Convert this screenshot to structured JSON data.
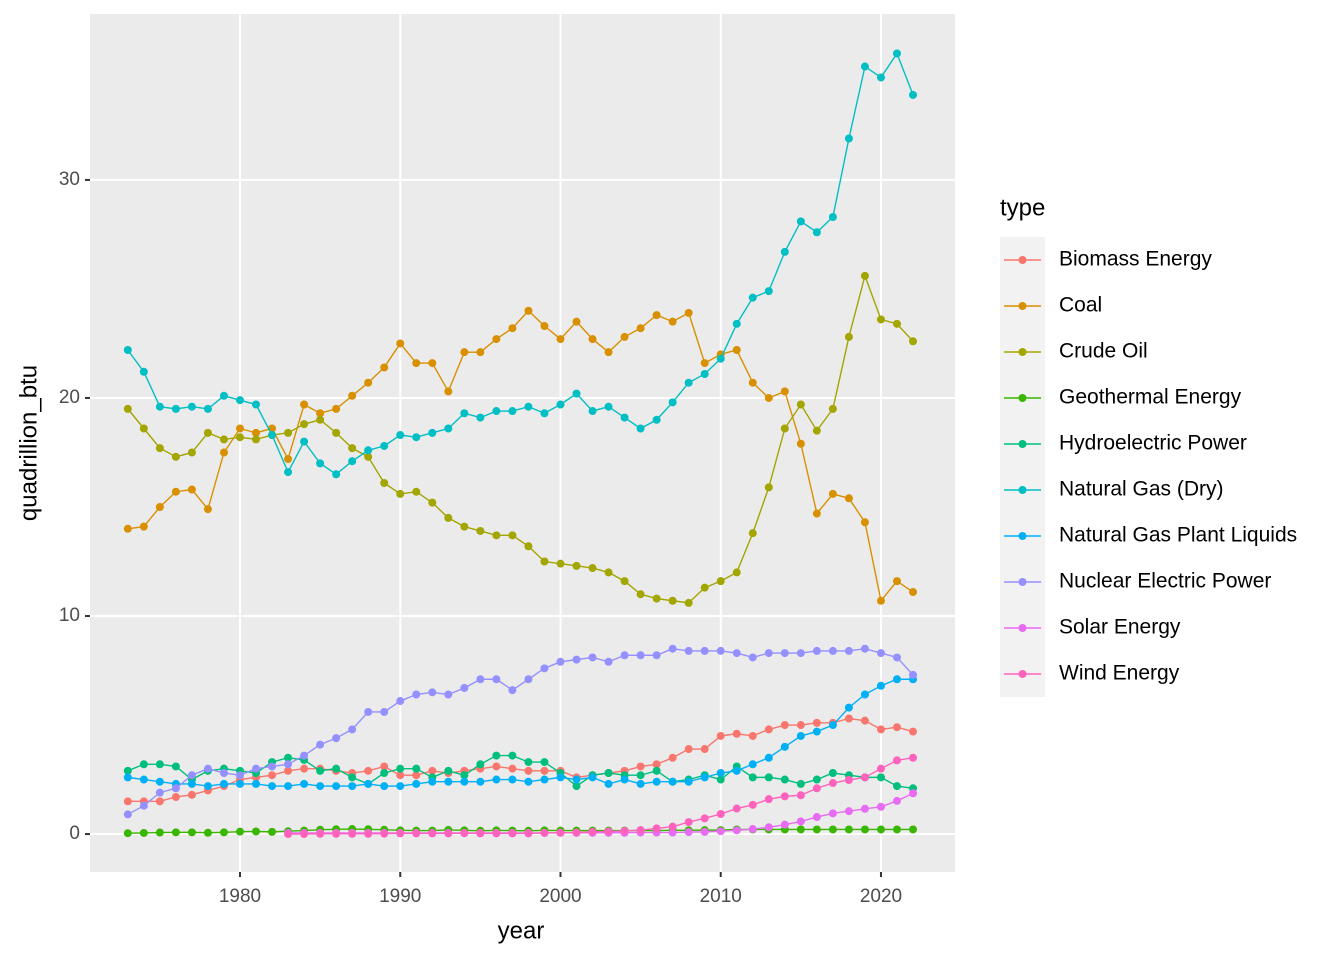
{
  "chart_data": {
    "type": "line",
    "x_label": "year",
    "y_label": "quadrillion_btu",
    "legend_title": "type",
    "legend_position": "right",
    "grid": true,
    "xlim": [
      1970.64,
      2024.62
    ],
    "ylim": [
      -1.74,
      37.61
    ],
    "xticks": [
      1980,
      1990,
      2000,
      2010,
      2020
    ],
    "yticks": [
      0,
      10,
      20,
      30
    ],
    "x": [
      1973,
      1974,
      1975,
      1976,
      1977,
      1978,
      1979,
      1980,
      1981,
      1982,
      1983,
      1984,
      1985,
      1986,
      1987,
      1988,
      1989,
      1990,
      1991,
      1992,
      1993,
      1994,
      1995,
      1996,
      1997,
      1998,
      1999,
      2000,
      2001,
      2002,
      2003,
      2004,
      2005,
      2006,
      2007,
      2008,
      2009,
      2010,
      2011,
      2012,
      2013,
      2014,
      2015,
      2016,
      2017,
      2018,
      2019,
      2020,
      2021,
      2022
    ],
    "series": [
      {
        "name": "Biomass Energy",
        "color": "#F8766D",
        "values": [
          1.5,
          1.5,
          1.5,
          1.7,
          1.8,
          2.0,
          2.2,
          2.5,
          2.6,
          2.7,
          2.9,
          3.0,
          3.0,
          2.9,
          2.8,
          2.9,
          3.1,
          2.7,
          2.7,
          2.9,
          2.8,
          2.9,
          3.0,
          3.1,
          3.0,
          2.9,
          2.9,
          2.9,
          2.6,
          2.7,
          2.8,
          2.9,
          3.1,
          3.2,
          3.5,
          3.9,
          3.9,
          4.5,
          4.6,
          4.5,
          4.8,
          5.0,
          5.0,
          5.1,
          5.1,
          5.3,
          5.2,
          4.8,
          4.9,
          4.7
        ]
      },
      {
        "name": "Coal",
        "color": "#D89000",
        "values": [
          14.0,
          14.1,
          15.0,
          15.7,
          15.8,
          14.9,
          17.5,
          18.6,
          18.4,
          18.6,
          17.2,
          19.7,
          19.3,
          19.5,
          20.1,
          20.7,
          21.4,
          22.5,
          21.6,
          21.6,
          20.3,
          22.1,
          22.1,
          22.7,
          23.2,
          24.0,
          23.3,
          22.7,
          23.5,
          22.7,
          22.1,
          22.8,
          23.2,
          23.8,
          23.5,
          23.9,
          21.6,
          22.0,
          22.2,
          20.7,
          20.0,
          20.3,
          17.9,
          14.7,
          15.6,
          15.4,
          14.3,
          10.7,
          11.6,
          11.1
        ]
      },
      {
        "name": "Crude Oil",
        "color": "#A3A500",
        "values": [
          19.5,
          18.6,
          17.7,
          17.3,
          17.5,
          18.4,
          18.1,
          18.2,
          18.1,
          18.3,
          18.4,
          18.8,
          19.0,
          18.4,
          17.7,
          17.3,
          16.1,
          15.6,
          15.7,
          15.2,
          14.5,
          14.1,
          13.9,
          13.7,
          13.7,
          13.2,
          12.5,
          12.4,
          12.3,
          12.2,
          12.0,
          11.6,
          11.0,
          10.8,
          10.7,
          10.6,
          11.3,
          11.6,
          12.0,
          13.8,
          15.9,
          18.6,
          19.7,
          18.5,
          19.5,
          22.8,
          25.6,
          23.6,
          23.4,
          22.6
        ]
      },
      {
        "name": "Geothermal Energy",
        "color": "#39B600",
        "values": [
          0.04,
          0.05,
          0.07,
          0.08,
          0.08,
          0.06,
          0.08,
          0.11,
          0.12,
          0.1,
          0.13,
          0.16,
          0.2,
          0.22,
          0.23,
          0.22,
          0.2,
          0.17,
          0.16,
          0.16,
          0.19,
          0.17,
          0.15,
          0.17,
          0.16,
          0.15,
          0.17,
          0.16,
          0.16,
          0.16,
          0.16,
          0.16,
          0.16,
          0.16,
          0.17,
          0.17,
          0.18,
          0.18,
          0.21,
          0.21,
          0.21,
          0.21,
          0.21,
          0.21,
          0.21,
          0.21,
          0.21,
          0.21,
          0.21,
          0.21
        ]
      },
      {
        "name": "Hydroelectric Power",
        "color": "#00BF7D",
        "values": [
          2.9,
          3.2,
          3.2,
          3.1,
          2.5,
          2.9,
          3.0,
          2.9,
          2.8,
          3.3,
          3.5,
          3.4,
          2.9,
          3.0,
          2.6,
          2.3,
          2.8,
          3.0,
          3.0,
          2.6,
          2.9,
          2.7,
          3.2,
          3.6,
          3.6,
          3.3,
          3.3,
          2.8,
          2.2,
          2.7,
          2.8,
          2.7,
          2.7,
          2.9,
          2.4,
          2.5,
          2.7,
          2.5,
          3.1,
          2.6,
          2.6,
          2.5,
          2.3,
          2.5,
          2.8,
          2.7,
          2.6,
          2.6,
          2.2,
          2.1
        ]
      },
      {
        "name": "Natural Gas (Dry)",
        "color": "#00BFC4",
        "values": [
          22.2,
          21.2,
          19.6,
          19.5,
          19.6,
          19.5,
          20.1,
          19.9,
          19.7,
          18.3,
          16.6,
          18.0,
          17.0,
          16.5,
          17.1,
          17.6,
          17.8,
          18.3,
          18.2,
          18.4,
          18.6,
          19.3,
          19.1,
          19.4,
          19.4,
          19.6,
          19.3,
          19.7,
          20.2,
          19.4,
          19.6,
          19.1,
          18.6,
          19.0,
          19.8,
          20.7,
          21.1,
          21.8,
          23.4,
          24.6,
          24.9,
          26.7,
          28.1,
          27.6,
          28.3,
          31.9,
          35.2,
          34.7,
          35.8,
          33.9
        ]
      },
      {
        "name": "Natural Gas Plant Liquids",
        "color": "#00B0F6",
        "values": [
          2.6,
          2.5,
          2.4,
          2.3,
          2.3,
          2.2,
          2.3,
          2.3,
          2.3,
          2.2,
          2.2,
          2.3,
          2.2,
          2.2,
          2.2,
          2.3,
          2.2,
          2.2,
          2.3,
          2.4,
          2.4,
          2.4,
          2.4,
          2.5,
          2.5,
          2.4,
          2.5,
          2.6,
          2.5,
          2.6,
          2.3,
          2.5,
          2.3,
          2.4,
          2.4,
          2.4,
          2.6,
          2.8,
          2.9,
          3.2,
          3.5,
          4.0,
          4.5,
          4.7,
          5.0,
          5.8,
          6.4,
          6.8,
          7.1,
          7.1
        ]
      },
      {
        "name": "Nuclear Electric Power",
        "color": "#9590FF",
        "values": [
          0.9,
          1.3,
          1.9,
          2.1,
          2.7,
          3.0,
          2.8,
          2.7,
          3.0,
          3.1,
          3.2,
          3.6,
          4.1,
          4.4,
          4.8,
          5.6,
          5.6,
          6.1,
          6.4,
          6.5,
          6.4,
          6.7,
          7.1,
          7.1,
          6.6,
          7.1,
          7.6,
          7.9,
          8.0,
          8.1,
          7.9,
          8.2,
          8.2,
          8.2,
          8.5,
          8.4,
          8.4,
          8.4,
          8.3,
          8.1,
          8.3,
          8.3,
          8.3,
          8.4,
          8.4,
          8.4,
          8.5,
          8.3,
          8.1,
          7.3
        ]
      },
      {
        "name": "Solar Energy",
        "color": "#E76BF3",
        "values": [
          null,
          null,
          null,
          null,
          null,
          null,
          null,
          null,
          null,
          null,
          0.05,
          0.05,
          0.05,
          0.05,
          0.05,
          0.05,
          0.05,
          0.05,
          0.05,
          0.05,
          0.05,
          0.05,
          0.05,
          0.05,
          0.05,
          0.05,
          0.05,
          0.06,
          0.06,
          0.06,
          0.06,
          0.06,
          0.07,
          0.07,
          0.07,
          0.09,
          0.1,
          0.13,
          0.17,
          0.23,
          0.31,
          0.43,
          0.58,
          0.78,
          0.95,
          1.05,
          1.16,
          1.25,
          1.52,
          1.87
        ]
      },
      {
        "name": "Wind Energy",
        "color": "#FF62BC",
        "values": [
          null,
          null,
          null,
          null,
          null,
          null,
          null,
          null,
          null,
          null,
          0,
          0,
          0.01,
          0.01,
          0.01,
          0.01,
          0.02,
          0.03,
          0.03,
          0.03,
          0.03,
          0.04,
          0.03,
          0.03,
          0.03,
          0.03,
          0.05,
          0.06,
          0.07,
          0.1,
          0.12,
          0.14,
          0.18,
          0.26,
          0.34,
          0.55,
          0.72,
          0.92,
          1.17,
          1.34,
          1.6,
          1.73,
          1.78,
          2.1,
          2.34,
          2.48,
          2.6,
          3.0,
          3.38,
          3.5
        ]
      }
    ]
  }
}
